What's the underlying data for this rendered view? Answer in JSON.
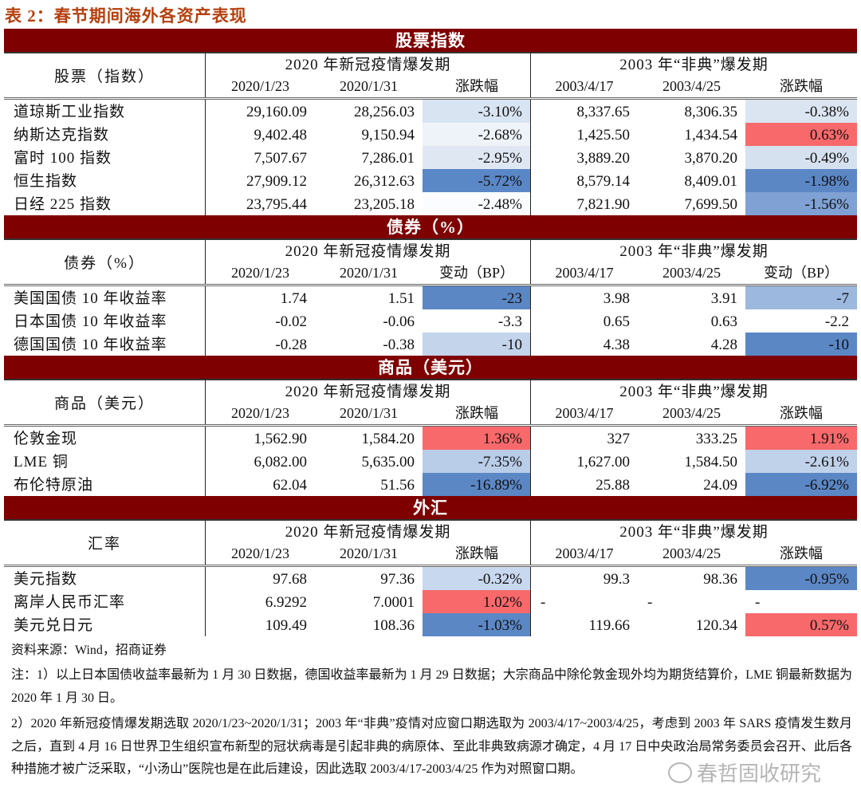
{
  "title": "表 2：春节期间海外各资产表现",
  "colors": {
    "band": "#7f0000",
    "title": "#b5400f",
    "up": "#f8696b",
    "down_strong": "#5b87c5"
  },
  "sections": [
    {
      "band": "股票指数",
      "label": "股票（指数）",
      "period1": "2020 年新冠疫情爆发期",
      "period2": "2003 年“非典”爆发期",
      "dates1": [
        "2020/1/23",
        "2020/1/31",
        "涨跌幅"
      ],
      "dates2": [
        "2003/4/17",
        "2003/4/25",
        "涨跌幅"
      ],
      "rows": [
        {
          "name": "道琼斯工业指数",
          "v": [
            "29,160.09",
            "28,256.03",
            "-3.10%",
            "8,337.65",
            "8,306.35",
            "-0.38%"
          ],
          "fill": [
            "#d9e4f2",
            "#dbe5f2"
          ]
        },
        {
          "name": "纳斯达克指数",
          "v": [
            "9,402.48",
            "9,150.94",
            "-2.68%",
            "1,425.50",
            "1,434.54",
            "0.63%"
          ],
          "fill": [
            "#eef3fa",
            "#f8696b"
          ]
        },
        {
          "name": "富时 100 指数",
          "v": [
            "7,507.67",
            "7,286.01",
            "-2.95%",
            "3,889.20",
            "3,870.20",
            "-0.49%"
          ],
          "fill": [
            "#dfe7f3",
            "#d6e1f0"
          ]
        },
        {
          "name": "恒生指数",
          "v": [
            "27,909.12",
            "26,312.63",
            "-5.72%",
            "8,579.14",
            "8,409.01",
            "-1.98%"
          ],
          "fill": [
            "#5a87c6",
            "#5b87c5"
          ]
        },
        {
          "name": "日经 225 指数",
          "v": [
            "23,795.44",
            "23,205.18",
            "-2.48%",
            "7,821.90",
            "7,699.50",
            "-1.56%"
          ],
          "fill": [
            "#fafcff",
            "#7fa1d3"
          ]
        }
      ]
    },
    {
      "band": "债券（%）",
      "label": "债券（%）",
      "period1": "2020 年新冠疫情爆发期",
      "period2": "2003 年“非典”爆发期",
      "dates1": [
        "2020/1/23",
        "2020/1/31",
        "变动（BP）"
      ],
      "dates2": [
        "2003/4/17",
        "2003/4/25",
        "变动（BP）"
      ],
      "rows": [
        {
          "name": "美国国债 10 年收益率",
          "v": [
            "1.74",
            "1.51",
            "-23",
            "3.98",
            "3.91",
            "-7"
          ],
          "fill": [
            "#5b87c5",
            "#9cb8de"
          ]
        },
        {
          "name": "日本国债 10 年收益率",
          "v": [
            "-0.02",
            "-0.06",
            "-3.3",
            "0.65",
            "0.63",
            "-2.2"
          ],
          "fill": [
            "#ffffff",
            "#ffffff"
          ]
        },
        {
          "name": "德国国债 10 年收益率",
          "v": [
            "-0.28",
            "-0.38",
            "-10",
            "4.38",
            "4.28",
            "-10"
          ],
          "fill": [
            "#c3d4eb",
            "#5b87c5"
          ]
        }
      ]
    },
    {
      "band": "商品（美元）",
      "label": "商品（美元）",
      "period1": "2020 年新冠疫情爆发期",
      "period2": "2003 年“非典”爆发期",
      "dates1": [
        "2020/1/23",
        "2020/1/31",
        "涨跌幅"
      ],
      "dates2": [
        "2003/4/17",
        "2003/4/25",
        "涨跌幅"
      ],
      "rows": [
        {
          "name": "伦敦金现",
          "v": [
            "1,562.90",
            "1,584.20",
            "1.36%",
            "327",
            "333.25",
            "1.91%"
          ],
          "fill": [
            "#f8696b",
            "#f8696b"
          ]
        },
        {
          "name": "LME 铜",
          "v": [
            "6,082.00",
            "5,635.00",
            "-7.35%",
            "1,627.00",
            "1,584.50",
            "-2.61%"
          ],
          "fill": [
            "#b9cde8",
            "#c0d2ea"
          ]
        },
        {
          "name": "布伦特原油",
          "v": [
            "62.04",
            "51.56",
            "-16.89%",
            "25.88",
            "24.09",
            "-6.92%"
          ],
          "fill": [
            "#5b87c5",
            "#5b87c5"
          ]
        }
      ]
    },
    {
      "band": "外汇",
      "label": "汇率",
      "period1": "2020 年新冠疫情爆发期",
      "period2": "2003 年“非典”爆发期",
      "dates1": [
        "2020/1/23",
        "2020/1/31",
        "涨跌幅"
      ],
      "dates2": [
        "2003/4/17",
        "2003/4/25",
        "涨跌幅"
      ],
      "rows": [
        {
          "name": "美元指数",
          "v": [
            "97.68",
            "97.36",
            "-0.32%",
            "99.3",
            "98.36",
            "-0.95%"
          ],
          "fill": [
            "#c8d8ee",
            "#5b87c5"
          ]
        },
        {
          "name": "离岸人民币汇率",
          "v": [
            "6.9292",
            "7.0001",
            "1.02%",
            "-",
            "-",
            "-"
          ],
          "fill": [
            "#f8696b",
            "#ffffff"
          ]
        },
        {
          "name": "美元兑日元",
          "v": [
            "109.49",
            "108.36",
            "-1.03%",
            "119.66",
            "120.34",
            "0.57%"
          ],
          "fill": [
            "#5b87c5",
            "#f8696b"
          ]
        }
      ]
    }
  ],
  "source": "资料来源：Wind，招商证券",
  "notes": [
    "注：1）以上日本国债收益率最新为 1 月 30 日数据，德国收益率最新为 1 月 29 日数据；大宗商品中除伦敦金现外均为期货结算价，LME 铜最新数据为 2020 年 1 月 30 日。",
    "2）2020 年新冠疫情爆发期选取 2020/1/23~2020/1/31；2003 年“非典”疫情对应窗口期选取为 2003/4/17~2003/4/25，考虑到 2003 年 SARS 疫情发生数月之后，直到 4 月 16 日世界卫生组织宣布新型的冠状病毒是引起非典的病原体、至此非典致病源才确定，4 月 17 日中央政治局常务委员会召开、此后各种措施才被广泛采取，“小汤山”医院也是在此后建设，因此选取 2003/4/17-2003/4/25 作为对照窗口期。"
  ],
  "watermark": "春哲固收研究"
}
